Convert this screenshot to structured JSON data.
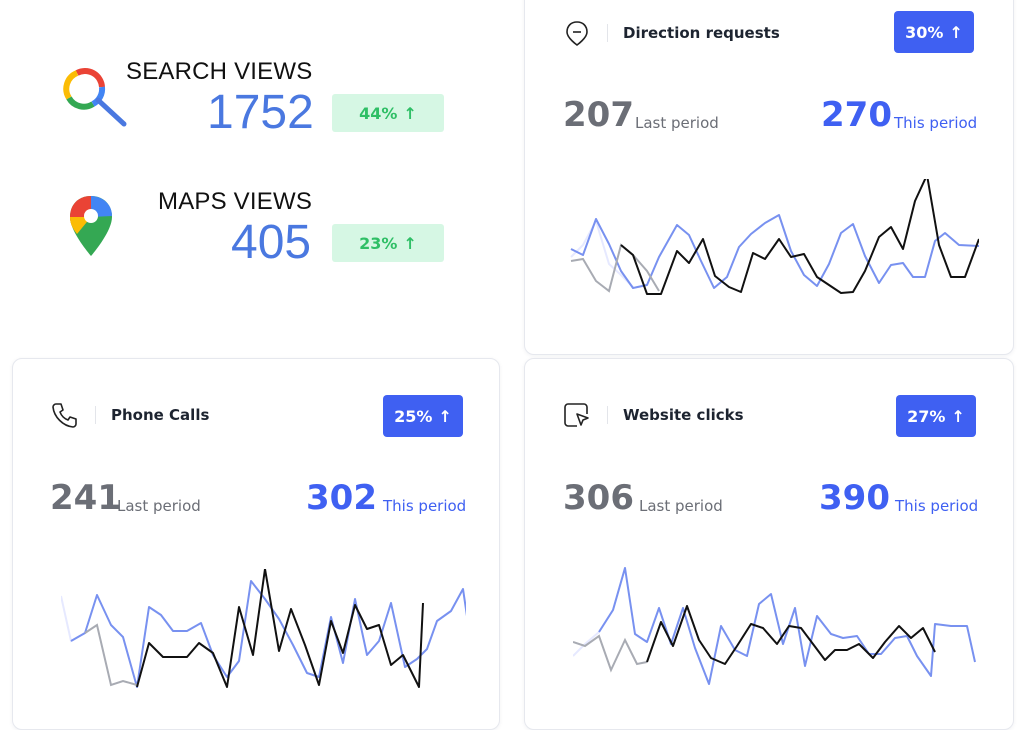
{
  "summary": {
    "search": {
      "title": "SEARCH VIEWS",
      "value": "1752",
      "change": "44%",
      "icon": "google-search-icon",
      "badge_color": "#d6f7e4",
      "value_color": "#4a78e0"
    },
    "maps": {
      "title": "MAPS VIEWS",
      "value": "405",
      "change": "23%",
      "icon": "google-maps-pin-icon",
      "badge_color": "#d6f7e4",
      "value_color": "#4a78e0"
    }
  },
  "accent_color": "#3f60f2",
  "cards": {
    "direction": {
      "title": "Direction requests",
      "icon": "location-pin-icon",
      "change": "30%",
      "last_value": "207",
      "last_label": "Last period",
      "this_value": "270",
      "this_label": "This period"
    },
    "phone": {
      "title": "Phone Calls",
      "icon": "phone-icon",
      "change": "25%",
      "last_value": "241",
      "last_label": "Last period",
      "this_value": "302",
      "this_label": "This period"
    },
    "website": {
      "title": "Website clicks",
      "icon": "cursor-click-icon",
      "change": "27%",
      "last_value": "306",
      "last_label": "Last period",
      "this_value": "390",
      "this_label": "This period"
    }
  }
}
